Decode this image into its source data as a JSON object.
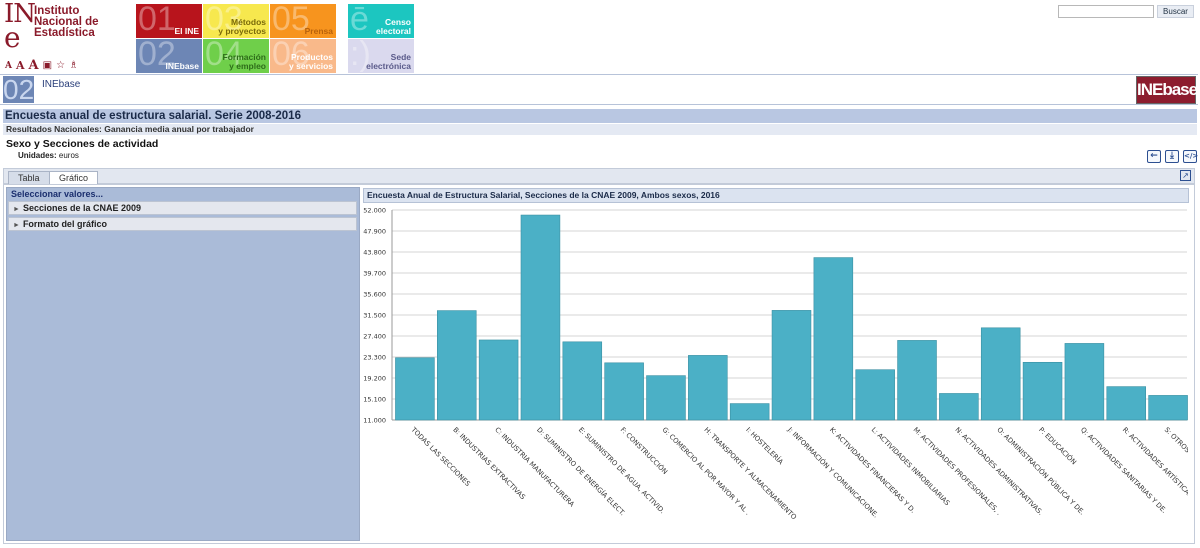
{
  "header": {
    "logo": {
      "letters": "IN",
      "e": "e",
      "name_lines": [
        "Instituto",
        "Nacional de",
        "Estadística"
      ]
    },
    "tools": {
      "a_small": "A",
      "a_medium": "A",
      "a_large": "A",
      "icons": [
        "print-icon",
        "star-icon",
        "sitemap-icon"
      ]
    },
    "tiles": [
      {
        "id": "el-ine",
        "num": "01",
        "label": "El INE",
        "color": "#b8141c"
      },
      {
        "id": "metodos",
        "num": "03",
        "label": "Métodos\ny proyectos",
        "color": "#f7e84e",
        "text_color": "#7a6a0a"
      },
      {
        "id": "prensa",
        "num": "05",
        "label": "Prensa",
        "color": "#f7941e",
        "text_color": "#b9620c"
      },
      {
        "id": "censo",
        "num": "ē",
        "label": "Censo\nelectoral",
        "color": "#1cc6c0"
      },
      {
        "id": "inebase",
        "num": "02",
        "label": "INEbase",
        "color": "#6d86b5"
      },
      {
        "id": "formacion",
        "num": "04",
        "label": "Formación\ny empleo",
        "color": "#6fcf4a",
        "text_color": "#2e6d1a"
      },
      {
        "id": "productos",
        "num": "06",
        "label": "Productos\ny servicios",
        "color": "#f9b98a",
        "text_color": "#ffffff"
      },
      {
        "id": "sede",
        "num": ":)",
        "label": "Sede\nelectrónica",
        "color": "#dad9ee",
        "text_color": "#5a5a8a"
      }
    ],
    "search": {
      "placeholder": "",
      "button_label": "Buscar"
    }
  },
  "section": {
    "number": "02",
    "name": "INEbase",
    "logo_text": "INEbase"
  },
  "page": {
    "title": "Encuesta anual de estructura salarial. Serie 2008-2016",
    "subtitle": "Resultados Nacionales: Ganancia media anual por trabajador",
    "table_title": "Sexo y Secciones de actividad",
    "units_label": "Unidades:",
    "units_value": "euros"
  },
  "actions": {
    "icons": [
      "back-icon",
      "download-icon",
      "embed-icon"
    ],
    "back": "←",
    "download": "⤓",
    "embed": "</>",
    "popout": "↗"
  },
  "tabs": [
    {
      "label": "Tabla",
      "active": false
    },
    {
      "label": "Gráfico",
      "active": true
    }
  ],
  "left_panel": {
    "title": "Seleccionar valores...",
    "items": [
      {
        "label": "Secciones de la CNAE 2009"
      },
      {
        "label": "Formato del gráfico"
      }
    ]
  },
  "chart_data": {
    "type": "bar",
    "title": "Encuesta Anual de Estructura Salarial, Secciones de la CNAE 2009, Ambos sexos, 2016",
    "categories": [
      "TODAS LAS SECCIONES",
      "B: INDUSTRIAS EXTRACTIVAS",
      "C: INDUSTRIA MANUFACTURERA",
      "D: SUMINISTRO DE ENERGÍA ELECT.",
      "E: SUMINISTRO DE AGUA, ACTIVID.",
      "F: CONSTRUCCIÓN",
      "G: COMERCIO AL POR MAYOR Y AL .",
      "H: TRANSPORTE Y ALMACENAMIENTO",
      "I: HOSTELERÍA",
      "J: INFORMACIÓN Y COMUNICACIONE.",
      "K: ACTIVIDADES FINANCIERAS Y D.",
      "L: ACTIVIDADES INMOBILIARIAS",
      "M: ACTIVIDADES PROFESIONALES, .",
      "N: ACTIVIDADES ADMINISTRATIVAS.",
      "O: ADMINISTRACIÓN PÚBLICA Y DE.",
      "P: EDUCACIÓN",
      "Q: ACTIVIDADES SANITARIAS Y DE.",
      "R: ACTIVIDADES ARTÍSTICAS, R.",
      "S: OTROS SERVICIOS"
    ],
    "values": [
      23156,
      32360,
      26627,
      51016,
      26264,
      22164,
      19664,
      23611,
      14207,
      32400,
      42711,
      20819,
      26538,
      16181,
      29000,
      22267,
      25950,
      17519,
      15800
    ],
    "ylim": [
      11000,
      52000
    ],
    "yticks": [
      "11.000",
      "15.100",
      "19.200",
      "23.300",
      "27.400",
      "31.500",
      "35.600",
      "39.700",
      "43.800",
      "47.900",
      "52.000"
    ],
    "ytick_values": [
      11000,
      15100,
      19200,
      23300,
      27400,
      31500,
      35600,
      39700,
      43800,
      47900,
      52000
    ],
    "bar_color": "#4bb0c6",
    "grid": true
  }
}
